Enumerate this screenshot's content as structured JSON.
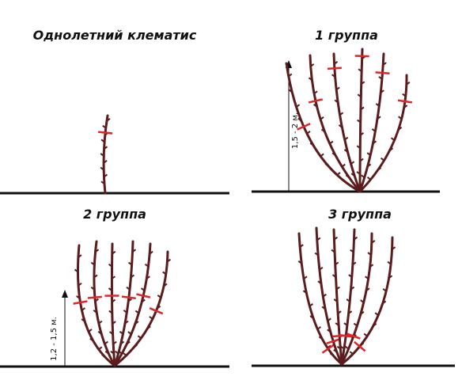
{
  "panels": [
    {
      "title": "Однолетний клематис"
    },
    {
      "title": "1 группа",
      "height_label": "1,5 - 2 м."
    },
    {
      "title": "2 группа",
      "height_label": "1,2 - 1,5 м."
    },
    {
      "title": "3 группа"
    }
  ]
}
